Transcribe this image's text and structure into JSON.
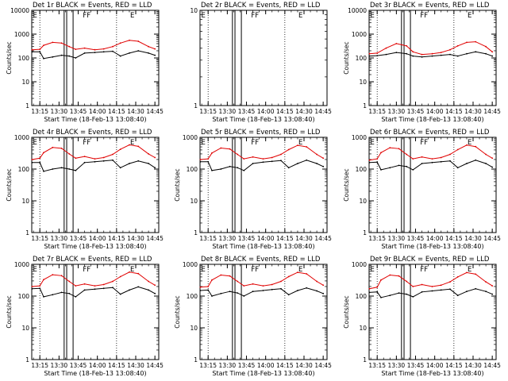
{
  "colors": {
    "events": "#000000",
    "lld": "#e00000",
    "background": "#ffffff"
  },
  "chart_data": [
    {
      "type": "line",
      "title": "Det 1r BLACK = Events, RED = LLD",
      "xlabel": "Start Time (18-Feb-13 13:08:40)",
      "ylabel": "Counts/sec",
      "yscale": "log",
      "ylim": [
        1,
        10000
      ],
      "xtick_labels": [
        "13:15",
        "13:30",
        "13:45",
        "14:00",
        "14:15",
        "14:30",
        "14:45"
      ],
      "ytick_labels": [
        "1",
        "10",
        "100",
        "1000",
        "10000"
      ],
      "markers": [
        "E",
        "F",
        "F",
        "E"
      ],
      "has_data": true,
      "series": [
        {
          "name": "BLACK = Events",
          "x": [
            "13:09",
            "13:15",
            "13:18",
            "13:25",
            "13:32",
            "13:38",
            "13:43",
            "13:50",
            "13:58",
            "14:05",
            "14:12",
            "14:18",
            "14:25",
            "14:32",
            "14:40",
            "14:45"
          ],
          "values": [
            180,
            180,
            95,
            110,
            130,
            120,
            100,
            160,
            170,
            180,
            190,
            120,
            160,
            200,
            160,
            130
          ]
        },
        {
          "name": "RED = LLD",
          "x": [
            "13:09",
            "13:15",
            "13:18",
            "13:25",
            "13:32",
            "13:38",
            "13:43",
            "13:50",
            "13:58",
            "14:05",
            "14:12",
            "14:18",
            "14:25",
            "14:32",
            "14:40",
            "14:45"
          ],
          "values": [
            220,
            230,
            340,
            450,
            420,
            300,
            230,
            260,
            220,
            240,
            300,
            420,
            550,
            500,
            300,
            240
          ]
        }
      ]
    },
    {
      "type": "line",
      "title": "Det 2r BLACK = Events, RED = LLD",
      "xlabel": "Start Time (18-Feb-13 13:08:40)",
      "ylabel": "",
      "yscale": "log",
      "ylim": [
        1,
        10
      ],
      "xtick_labels": [
        "13:15",
        "13:30",
        "13:45",
        "14:00",
        "14:15",
        "14:30",
        "14:45"
      ],
      "ytick_labels": [
        "1",
        "10"
      ],
      "markers": [
        "E",
        "F",
        "F",
        "E"
      ],
      "has_data": false,
      "series": []
    },
    {
      "type": "line",
      "title": "Det 3r BLACK = Events, RED = LLD",
      "xlabel": "Start Time (18-Feb-13 13:08:40)",
      "ylabel": "Counts/sec",
      "yscale": "log",
      "ylim": [
        1,
        10000
      ],
      "xtick_labels": [
        "13:15",
        "13:30",
        "13:45",
        "14:00",
        "14:15",
        "14:30",
        "14:45"
      ],
      "ytick_labels": [
        "1",
        "10",
        "100",
        "1000",
        "10000"
      ],
      "markers": [
        "E",
        "F",
        "F",
        "E"
      ],
      "has_data": true,
      "series": [
        {
          "name": "BLACK = Events",
          "x": [
            "13:09",
            "13:15",
            "13:22",
            "13:30",
            "13:38",
            "13:43",
            "13:50",
            "13:58",
            "14:05",
            "14:12",
            "14:18",
            "14:25",
            "14:32",
            "14:40",
            "14:45"
          ],
          "values": [
            120,
            125,
            140,
            170,
            150,
            120,
            110,
            120,
            130,
            140,
            120,
            150,
            180,
            150,
            120
          ]
        },
        {
          "name": "RED = LLD",
          "x": [
            "13:09",
            "13:15",
            "13:22",
            "13:30",
            "13:38",
            "13:43",
            "13:50",
            "13:58",
            "14:05",
            "14:12",
            "14:18",
            "14:25",
            "14:32",
            "14:40",
            "14:45"
          ],
          "values": [
            150,
            160,
            260,
            400,
            320,
            180,
            140,
            150,
            170,
            220,
            320,
            450,
            480,
            300,
            180
          ]
        }
      ]
    },
    {
      "type": "line",
      "title": "Det 4r BLACK = Events, RED = LLD",
      "xlabel": "Start Time (18-Feb-13 13:08:40)",
      "ylabel": "Counts/sec",
      "yscale": "log",
      "ylim": [
        1,
        1000
      ],
      "xtick_labels": [
        "13:15",
        "13:30",
        "13:45",
        "14:00",
        "14:15",
        "14:30",
        "14:45"
      ],
      "ytick_labels": [
        "1",
        "10",
        "100",
        "1000"
      ],
      "markers": [
        "E",
        "F",
        "F",
        "E"
      ],
      "has_data": true,
      "series": [
        {
          "name": "BLACK = Events",
          "x": [
            "13:09",
            "13:15",
            "13:18",
            "13:25",
            "13:32",
            "13:38",
            "13:43",
            "13:50",
            "13:58",
            "14:05",
            "14:12",
            "14:18",
            "14:25",
            "14:32",
            "14:40",
            "14:45"
          ],
          "values": [
            160,
            160,
            85,
            100,
            110,
            100,
            90,
            160,
            170,
            180,
            190,
            110,
            150,
            180,
            150,
            110
          ]
        },
        {
          "name": "RED = LLD",
          "x": [
            "13:09",
            "13:15",
            "13:18",
            "13:25",
            "13:32",
            "13:38",
            "13:43",
            "13:50",
            "13:58",
            "14:05",
            "14:12",
            "14:18",
            "14:25",
            "14:32",
            "14:40",
            "14:45"
          ],
          "values": [
            200,
            220,
            330,
            480,
            450,
            300,
            220,
            250,
            210,
            230,
            290,
            420,
            580,
            520,
            300,
            230
          ]
        }
      ]
    },
    {
      "type": "line",
      "title": "Det 5r BLACK = Events, RED = LLD",
      "xlabel": "Start Time (18-Feb-13 13:08:40)",
      "ylabel": "Counts/sec",
      "yscale": "log",
      "ylim": [
        1,
        1000
      ],
      "xtick_labels": [
        "13:15",
        "13:30",
        "13:45",
        "14:00",
        "14:15",
        "14:30",
        "14:45"
      ],
      "ytick_labels": [
        "1",
        "10",
        "100",
        "1000"
      ],
      "markers": [
        "E",
        "F",
        "F",
        "E"
      ],
      "has_data": true,
      "series": [
        {
          "name": "BLACK = Events",
          "x": [
            "13:09",
            "13:15",
            "13:18",
            "13:25",
            "13:32",
            "13:38",
            "13:43",
            "13:50",
            "13:58",
            "14:05",
            "14:12",
            "14:18",
            "14:25",
            "14:32",
            "14:40",
            "14:45"
          ],
          "values": [
            170,
            170,
            90,
            100,
            120,
            110,
            90,
            150,
            165,
            175,
            185,
            110,
            150,
            190,
            150,
            120
          ]
        },
        {
          "name": "RED = LLD",
          "x": [
            "13:09",
            "13:15",
            "13:18",
            "13:25",
            "13:32",
            "13:38",
            "13:43",
            "13:50",
            "13:58",
            "14:05",
            "14:12",
            "14:18",
            "14:25",
            "14:32",
            "14:40",
            "14:45"
          ],
          "values": [
            200,
            210,
            320,
            460,
            430,
            290,
            210,
            240,
            210,
            230,
            290,
            410,
            560,
            500,
            290,
            220
          ]
        }
      ]
    },
    {
      "type": "line",
      "title": "Det 6r BLACK = Events, RED = LLD",
      "xlabel": "Start Time (18-Feb-13 13:08:40)",
      "ylabel": "Counts/sec",
      "yscale": "log",
      "ylim": [
        1,
        1000
      ],
      "xtick_labels": [
        "13:15",
        "13:30",
        "13:45",
        "14:00",
        "14:15",
        "14:30",
        "14:45"
      ],
      "ytick_labels": [
        "1",
        "10",
        "100",
        "1000"
      ],
      "markers": [
        "E",
        "F",
        "F",
        "E"
      ],
      "has_data": true,
      "series": [
        {
          "name": "BLACK = Events",
          "x": [
            "13:09",
            "13:15",
            "13:18",
            "13:25",
            "13:32",
            "13:38",
            "13:43",
            "13:50",
            "13:58",
            "14:05",
            "14:12",
            "14:18",
            "14:25",
            "14:32",
            "14:40",
            "14:45"
          ],
          "values": [
            160,
            165,
            95,
            110,
            130,
            120,
            95,
            150,
            160,
            170,
            180,
            110,
            150,
            190,
            150,
            115
          ]
        },
        {
          "name": "RED = LLD",
          "x": [
            "13:09",
            "13:15",
            "13:18",
            "13:25",
            "13:32",
            "13:38",
            "13:43",
            "13:50",
            "13:58",
            "14:05",
            "14:12",
            "14:18",
            "14:25",
            "14:32",
            "14:40",
            "14:45"
          ],
          "values": [
            190,
            210,
            330,
            470,
            440,
            290,
            210,
            240,
            210,
            230,
            290,
            410,
            570,
            510,
            290,
            220
          ]
        }
      ]
    },
    {
      "type": "line",
      "title": "Det 7r BLACK = Events, RED = LLD",
      "xlabel": "Start Time (18-Feb-13 13:08:40)",
      "ylabel": "Counts/sec",
      "yscale": "log",
      "ylim": [
        1,
        1000
      ],
      "xtick_labels": [
        "13:15",
        "13:30",
        "13:45",
        "14:00",
        "14:15",
        "14:30",
        "14:45"
      ],
      "ytick_labels": [
        "1",
        "10",
        "100",
        "1000"
      ],
      "markers": [
        "E",
        "F",
        "F",
        "E"
      ],
      "has_data": true,
      "series": [
        {
          "name": "BLACK = Events",
          "x": [
            "13:09",
            "13:15",
            "13:18",
            "13:25",
            "13:32",
            "13:38",
            "13:43",
            "13:50",
            "13:58",
            "14:05",
            "14:12",
            "14:18",
            "14:25",
            "14:32",
            "14:40",
            "14:45"
          ],
          "values": [
            170,
            175,
            95,
            110,
            130,
            120,
            95,
            155,
            165,
            175,
            185,
            115,
            155,
            195,
            155,
            120
          ]
        },
        {
          "name": "RED = LLD",
          "x": [
            "13:09",
            "13:15",
            "13:18",
            "13:25",
            "13:32",
            "13:38",
            "13:43",
            "13:50",
            "13:58",
            "14:05",
            "14:12",
            "14:18",
            "14:25",
            "14:32",
            "14:40",
            "14:45"
          ],
          "values": [
            200,
            210,
            330,
            470,
            440,
            290,
            210,
            240,
            210,
            230,
            290,
            410,
            570,
            510,
            290,
            220
          ]
        }
      ]
    },
    {
      "type": "line",
      "title": "Det 8r BLACK = Events, RED = LLD",
      "xlabel": "Start Time (18-Feb-13 13:08:40)",
      "ylabel": "Counts/sec",
      "yscale": "log",
      "ylim": [
        1,
        1000
      ],
      "xtick_labels": [
        "13:15",
        "13:30",
        "13:45",
        "14:00",
        "14:15",
        "14:30",
        "14:45"
      ],
      "ytick_labels": [
        "1",
        "10",
        "100",
        "1000"
      ],
      "markers": [
        "E",
        "F",
        "F",
        "E"
      ],
      "has_data": true,
      "series": [
        {
          "name": "BLACK = Events",
          "x": [
            "13:09",
            "13:15",
            "13:18",
            "13:25",
            "13:32",
            "13:38",
            "13:43",
            "13:50",
            "13:58",
            "14:05",
            "14:12",
            "14:18",
            "14:25",
            "14:32",
            "14:40",
            "14:45"
          ],
          "values": [
            150,
            155,
            100,
            120,
            140,
            125,
            100,
            140,
            150,
            160,
            170,
            110,
            150,
            180,
            145,
            120
          ]
        },
        {
          "name": "RED = LLD",
          "x": [
            "13:09",
            "13:15",
            "13:18",
            "13:25",
            "13:32",
            "13:38",
            "13:43",
            "13:50",
            "13:58",
            "14:05",
            "14:12",
            "14:18",
            "14:25",
            "14:32",
            "14:40",
            "14:45"
          ],
          "values": [
            190,
            200,
            320,
            460,
            430,
            290,
            210,
            240,
            210,
            230,
            290,
            410,
            560,
            500,
            290,
            220
          ]
        }
      ]
    },
    {
      "type": "line",
      "title": "Det 9r BLACK = Events, RED = LLD",
      "xlabel": "Start Time (18-Feb-13 13:08:40)",
      "ylabel": "Counts/sec",
      "yscale": "log",
      "ylim": [
        1,
        1000
      ],
      "xtick_labels": [
        "13:15",
        "13:30",
        "13:45",
        "14:00",
        "14:15",
        "14:30",
        "14:45"
      ],
      "ytick_labels": [
        "1",
        "10",
        "100",
        "1000"
      ],
      "markers": [
        "E",
        "F",
        "F",
        "E"
      ],
      "has_data": true,
      "series": [
        {
          "name": "BLACK = Events",
          "x": [
            "13:09",
            "13:15",
            "13:18",
            "13:25",
            "13:32",
            "13:38",
            "13:43",
            "13:50",
            "13:58",
            "14:05",
            "14:12",
            "14:18",
            "14:25",
            "14:32",
            "14:40",
            "14:45"
          ],
          "values": [
            130,
            135,
            90,
            105,
            125,
            115,
            95,
            135,
            145,
            155,
            165,
            105,
            140,
            170,
            140,
            115
          ]
        },
        {
          "name": "RED = LLD",
          "x": [
            "13:09",
            "13:15",
            "13:18",
            "13:25",
            "13:32",
            "13:38",
            "13:43",
            "13:50",
            "13:58",
            "14:05",
            "14:12",
            "14:18",
            "14:25",
            "14:32",
            "14:40",
            "14:45"
          ],
          "values": [
            170,
            190,
            320,
            460,
            430,
            290,
            200,
            230,
            200,
            220,
            280,
            400,
            550,
            490,
            280,
            210
          ]
        }
      ]
    }
  ]
}
